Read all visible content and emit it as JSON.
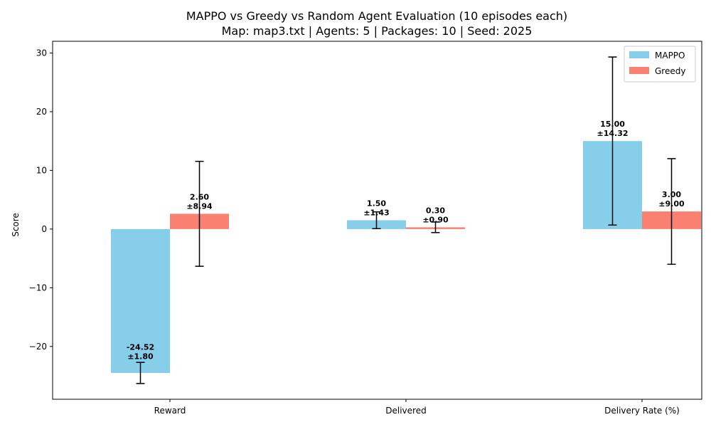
{
  "chart_data": {
    "type": "bar",
    "title": "MAPPO vs Greedy vs Random Agent Evaluation (10 episodes each)",
    "subtitle": "Map: map3.txt | Agents: 5 | Packages: 10 | Seed: 2025",
    "xlabel": "",
    "ylabel": "Score",
    "categories": [
      "Reward",
      "Delivered",
      "Delivery Rate (%)"
    ],
    "ylim": [
      -29,
      32
    ],
    "yticks": [
      -20,
      -10,
      0,
      10,
      20,
      30
    ],
    "ytick_labels": [
      "−20",
      "−10",
      "0",
      "10",
      "20",
      "30"
    ],
    "grid": false,
    "legend_position": "top-right",
    "series": [
      {
        "name": "MAPPO",
        "color": "#87CEEB",
        "values": [
          -24.52,
          1.5,
          15.0
        ],
        "errors": [
          1.8,
          1.43,
          14.32
        ],
        "labels": [
          [
            "-24.52",
            "±1.80"
          ],
          [
            "1.50",
            "±1.43"
          ],
          [
            "15.00",
            "±14.32"
          ]
        ]
      },
      {
        "name": "Greedy",
        "color": "#FA8072",
        "values": [
          2.6,
          0.3,
          3.0
        ],
        "errors": [
          8.94,
          0.9,
          9.0
        ],
        "labels": [
          [
            "2.60",
            "±8.94"
          ],
          [
            "0.30",
            "±0.90"
          ],
          [
            "3.00",
            "±9.00"
          ]
        ]
      }
    ]
  }
}
